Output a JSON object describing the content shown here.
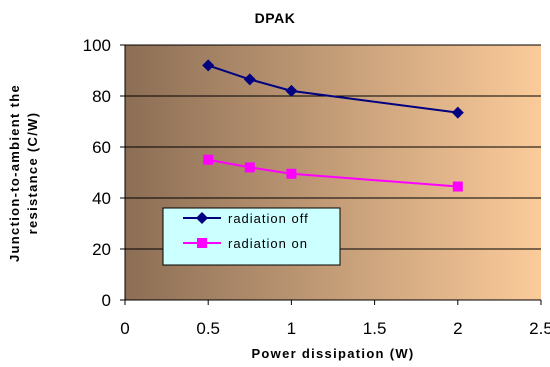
{
  "chart_data": {
    "type": "line",
    "title": "DPAK",
    "xlabel": "Power dissipation (W)",
    "ylabel": [
      "Junction-to-ambient the",
      "resistance (C/W)"
    ],
    "xlim": [
      0,
      2.5
    ],
    "ylim": [
      0,
      100
    ],
    "xticks": [
      "0",
      "0.5",
      "1",
      "1.5",
      "2",
      "2.5"
    ],
    "yticks": [
      "0",
      "20",
      "40",
      "60",
      "80",
      "100"
    ],
    "grid": "horizontal",
    "plot_background": "gradient brown to peach",
    "legend_placement": "lower-left",
    "series": [
      {
        "name": "radiation off",
        "color": "#000080",
        "marker": "diamond",
        "x": [
          0.5,
          0.75,
          1,
          2
        ],
        "y": [
          92,
          86.5,
          82,
          73.5
        ]
      },
      {
        "name": "radiation on",
        "color": "#FF00FF",
        "marker": "square",
        "x": [
          0.5,
          0.75,
          1,
          2
        ],
        "y": [
          55,
          52,
          49.5,
          44.5
        ]
      }
    ],
    "colors": {
      "bg_start": "#8c6e55",
      "bg_end": "#fbcb9a",
      "legend_bg": "#ccffff"
    }
  }
}
